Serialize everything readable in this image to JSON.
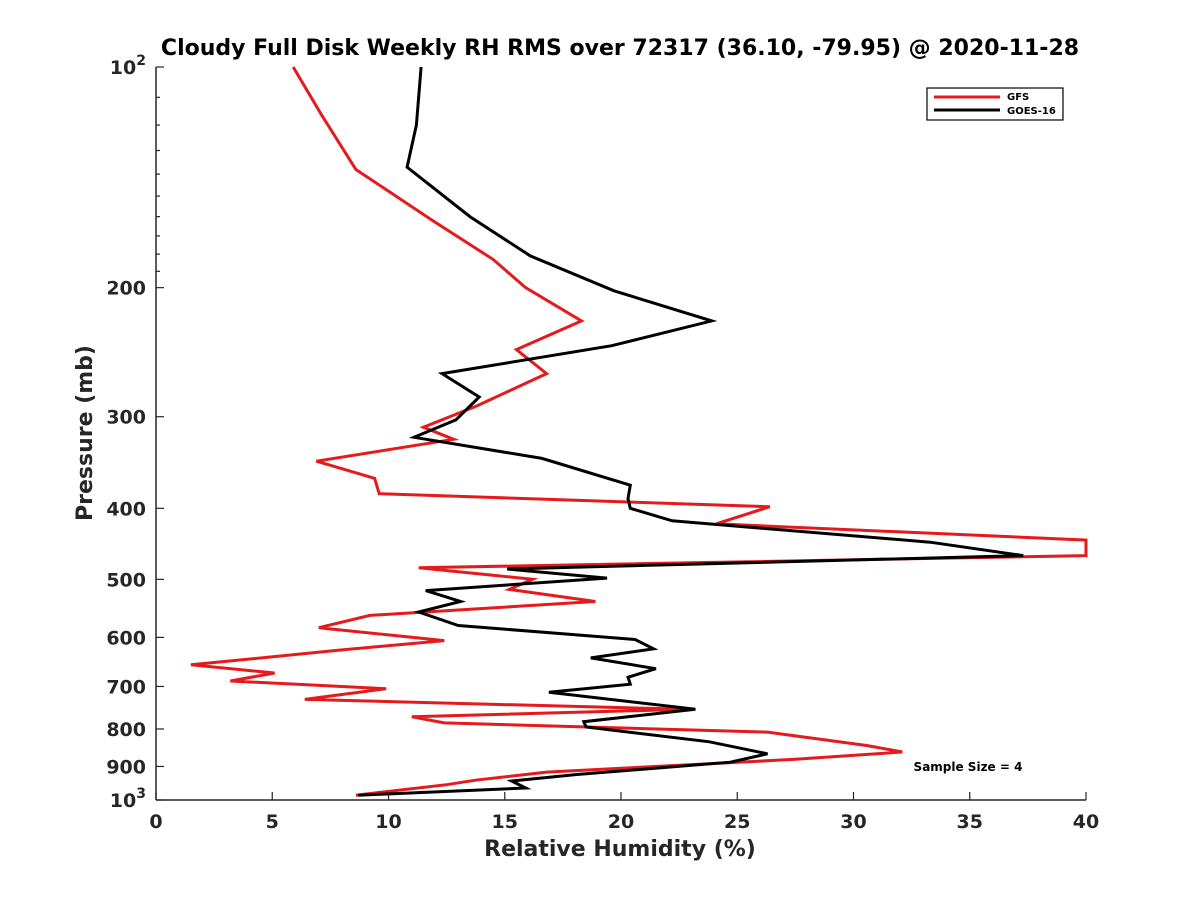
{
  "chart_data": {
    "type": "line",
    "title": "Cloudy Full Disk Weekly RH RMS over 72317 (36.10, -79.95) @ 2020-11-28",
    "xlabel": "Relative Humidity (%)",
    "ylabel": "Pressure (mb)",
    "xlim": [
      0,
      40
    ],
    "ylim": [
      100,
      1000
    ],
    "yscale": "log",
    "yaxis_reversed": true,
    "x_ticks": [
      "0",
      "5",
      "10",
      "15",
      "20",
      "25",
      "30",
      "35",
      "40"
    ],
    "y_ticks": [
      {
        "value": 100,
        "label": "10",
        "sup": "2"
      },
      {
        "value": 200,
        "label": "200",
        "sup": ""
      },
      {
        "value": 300,
        "label": "300",
        "sup": ""
      },
      {
        "value": 400,
        "label": "400",
        "sup": ""
      },
      {
        "value": 500,
        "label": "500",
        "sup": ""
      },
      {
        "value": 600,
        "label": "600",
        "sup": ""
      },
      {
        "value": 700,
        "label": "700",
        "sup": ""
      },
      {
        "value": 800,
        "label": "800",
        "sup": ""
      },
      {
        "value": 900,
        "label": "900",
        "sup": ""
      },
      {
        "value": 1000,
        "label": "10",
        "sup": "3"
      }
    ],
    "grid": false,
    "legend_position": "top-right",
    "series": [
      {
        "name": "GFS",
        "color": "#e41a1c",
        "points": [
          [
            5.9,
            100
          ],
          [
            7.1,
            116
          ],
          [
            8.6,
            138
          ],
          [
            11.9,
            162
          ],
          [
            14.5,
            183
          ],
          [
            15.9,
            200
          ],
          [
            18.3,
            222
          ],
          [
            15.5,
            243
          ],
          [
            16.8,
            262
          ],
          [
            13.8,
            290
          ],
          [
            11.5,
            310
          ],
          [
            12.8,
            322
          ],
          [
            6.9,
            345
          ],
          [
            9.4,
            364
          ],
          [
            9.6,
            382
          ],
          [
            26.4,
            398
          ],
          [
            24.1,
            420
          ],
          [
            40,
            442
          ],
          [
            40,
            464
          ],
          [
            11.3,
            482
          ],
          [
            16.2,
            500
          ],
          [
            15.2,
            516
          ],
          [
            18.9,
            536
          ],
          [
            9.2,
            560
          ],
          [
            7.0,
            582
          ],
          [
            12.4,
            606
          ],
          [
            8.0,
            624
          ],
          [
            1.5,
            654
          ],
          [
            5.1,
            671
          ],
          [
            3.2,
            688
          ],
          [
            9.9,
            705
          ],
          [
            6.4,
            729
          ],
          [
            22.8,
            752
          ],
          [
            11.0,
            770
          ],
          [
            12.4,
            785
          ],
          [
            26.3,
            808
          ],
          [
            30.6,
            843
          ],
          [
            32.1,
            860
          ],
          [
            27.5,
            880
          ],
          [
            16.8,
            916
          ],
          [
            13.7,
            940
          ],
          [
            12.5,
            953
          ],
          [
            8.6,
            985
          ]
        ]
      },
      {
        "name": "GOES-16",
        "color": "#000000",
        "points": [
          [
            11.4,
            100
          ],
          [
            11.2,
            120
          ],
          [
            10.8,
            137
          ],
          [
            13.5,
            160
          ],
          [
            16.1,
            181
          ],
          [
            19.7,
            202
          ],
          [
            23.9,
            222
          ],
          [
            19.6,
            240
          ],
          [
            12.3,
            262
          ],
          [
            13.9,
            282
          ],
          [
            12.9,
            303
          ],
          [
            11.1,
            320
          ],
          [
            16.6,
            342
          ],
          [
            20.4,
            372
          ],
          [
            20.3,
            388
          ],
          [
            20.4,
            400
          ],
          [
            22.2,
            416
          ],
          [
            33.3,
            445
          ],
          [
            37.3,
            464
          ],
          [
            15.1,
            484
          ],
          [
            19.4,
            498
          ],
          [
            11.6,
            518
          ],
          [
            13.1,
            536
          ],
          [
            11.3,
            554
          ],
          [
            13.0,
            578
          ],
          [
            20.6,
            604
          ],
          [
            21.4,
            622
          ],
          [
            18.7,
            640
          ],
          [
            21.5,
            662
          ],
          [
            20.3,
            680
          ],
          [
            20.4,
            695
          ],
          [
            16.9,
            713
          ],
          [
            23.2,
            752
          ],
          [
            18.4,
            782
          ],
          [
            18.5,
            795
          ],
          [
            23.8,
            833
          ],
          [
            26.3,
            865
          ],
          [
            24.7,
            888
          ],
          [
            18.1,
            923
          ],
          [
            15.3,
            942
          ],
          [
            15.9,
            963
          ],
          [
            8.7,
            985
          ]
        ]
      }
    ],
    "annotations": [
      {
        "text": "Sample Size = 4"
      }
    ]
  }
}
